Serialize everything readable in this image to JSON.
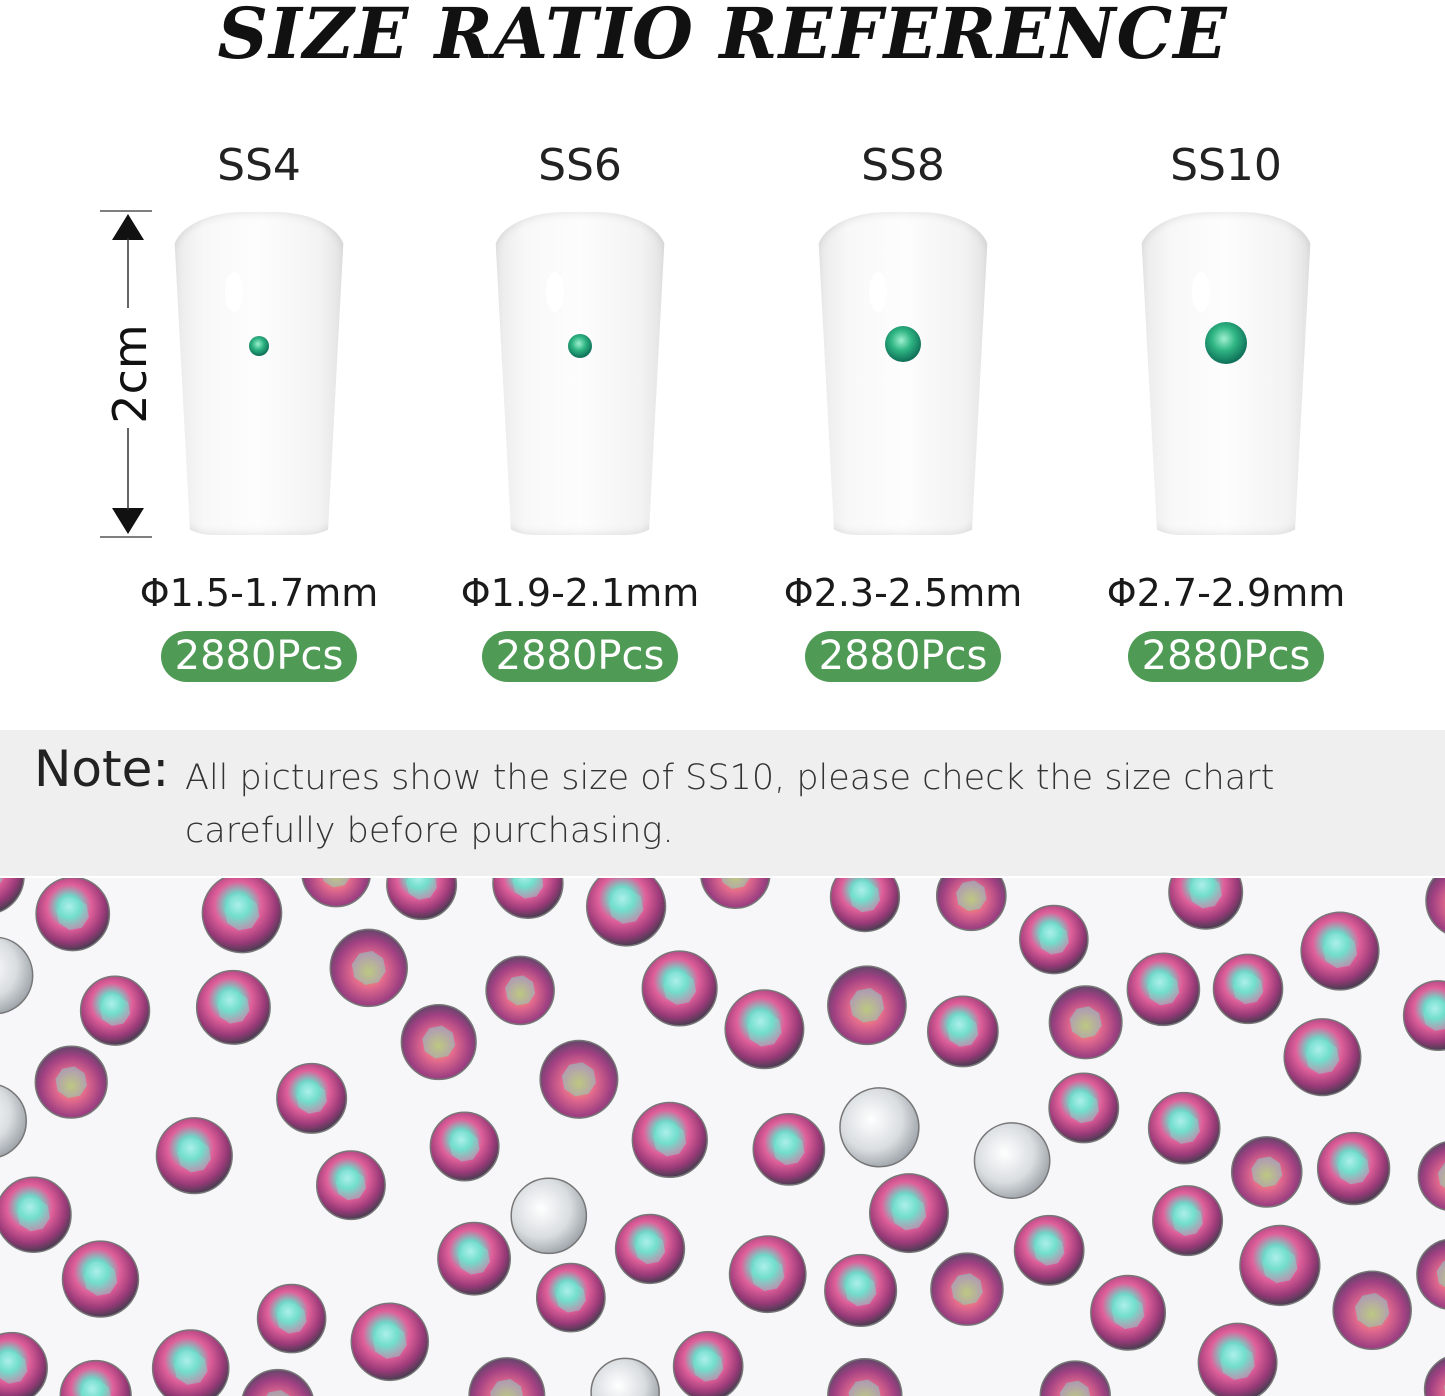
{
  "title": "SIZE RATIO REFERENCE",
  "length_label": "2cm",
  "sizes": [
    {
      "name": "SS4",
      "diameter": "Φ1.5-1.7mm",
      "count": "2880Pcs"
    },
    {
      "name": "SS6",
      "diameter": "Φ1.9-2.1mm",
      "count": "2880Pcs"
    },
    {
      "name": "SS8",
      "diameter": "Φ2.3-2.5mm",
      "count": "2880Pcs"
    },
    {
      "name": "SS10",
      "diameter": "Φ2.7-2.9mm",
      "count": "2880Pcs"
    }
  ],
  "note": {
    "label": "Note:",
    "text": "All pictures show the size of SS10, please check the size chart carefully before purchasing."
  },
  "colors": {
    "badge": "#4f9a55",
    "gem_sample": "#1f9a72",
    "note_band": "#efefef"
  }
}
